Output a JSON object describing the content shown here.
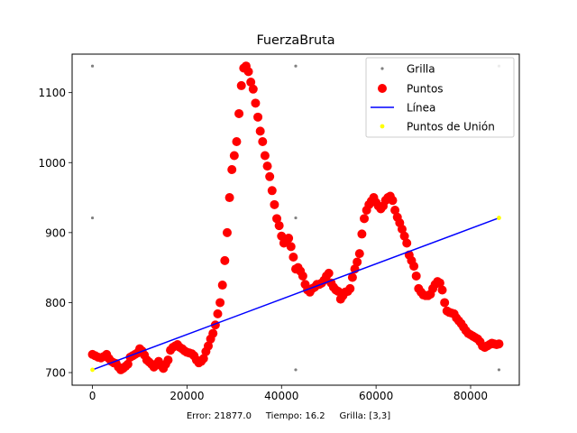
{
  "chart_data": {
    "type": "scatter",
    "title": "FuerzaBruta",
    "xlabel": "",
    "ylabel": "",
    "xlim": [
      -4300,
      90300
    ],
    "ylim": [
      682,
      1155
    ],
    "xticks": [
      0,
      20000,
      40000,
      60000,
      80000
    ],
    "yticks": [
      700,
      800,
      900,
      1000,
      1100
    ],
    "grid": false,
    "legend": {
      "placement": "top-right",
      "entries": [
        "Grilla",
        "Puntos",
        "Línea",
        "Puntos de Unión"
      ]
    },
    "colors": {
      "grilla": "#808080",
      "puntos": "#ff0000",
      "linea": "#0000ff",
      "union": "#ffff00"
    },
    "series": [
      {
        "name": "Grilla",
        "kind": "scatter",
        "points": [
          [
            0,
            704
          ],
          [
            0,
            921
          ],
          [
            0,
            1138
          ],
          [
            43000,
            704
          ],
          [
            43000,
            921
          ],
          [
            43000,
            1138
          ],
          [
            86000,
            704
          ],
          [
            86000,
            921
          ],
          [
            86000,
            1138
          ]
        ]
      },
      {
        "name": "Puntos",
        "kind": "scatter",
        "points": [
          [
            0,
            726
          ],
          [
            600,
            724
          ],
          [
            1200,
            722
          ],
          [
            1800,
            721
          ],
          [
            2400,
            723
          ],
          [
            3000,
            726
          ],
          [
            3500,
            720
          ],
          [
            4000,
            716
          ],
          [
            4500,
            714
          ],
          [
            5000,
            713
          ],
          [
            5500,
            708
          ],
          [
            6000,
            704
          ],
          [
            6500,
            706
          ],
          [
            7000,
            709
          ],
          [
            7500,
            712
          ],
          [
            8000,
            722
          ],
          [
            8500,
            724
          ],
          [
            9000,
            726
          ],
          [
            9500,
            728
          ],
          [
            10000,
            734
          ],
          [
            10500,
            731
          ],
          [
            11000,
            725
          ],
          [
            11500,
            718
          ],
          [
            12000,
            715
          ],
          [
            12500,
            712
          ],
          [
            13000,
            708
          ],
          [
            13500,
            712
          ],
          [
            14000,
            716
          ],
          [
            14500,
            710
          ],
          [
            15000,
            706
          ],
          [
            15500,
            712
          ],
          [
            16000,
            718
          ],
          [
            16500,
            732
          ],
          [
            17000,
            736
          ],
          [
            17500,
            738
          ],
          [
            18000,
            740
          ],
          [
            18500,
            736
          ],
          [
            19000,
            734
          ],
          [
            19500,
            731
          ],
          [
            20000,
            729
          ],
          [
            20500,
            728
          ],
          [
            21000,
            727
          ],
          [
            21500,
            724
          ],
          [
            22000,
            718
          ],
          [
            22500,
            714
          ],
          [
            23000,
            716
          ],
          [
            23500,
            720
          ],
          [
            24000,
            730
          ],
          [
            24500,
            738
          ],
          [
            25000,
            748
          ],
          [
            25500,
            756
          ],
          [
            26000,
            768
          ],
          [
            26500,
            784
          ],
          [
            27000,
            800
          ],
          [
            27500,
            825
          ],
          [
            28000,
            860
          ],
          [
            28500,
            900
          ],
          [
            29000,
            950
          ],
          [
            29500,
            990
          ],
          [
            30000,
            1010
          ],
          [
            30500,
            1030
          ],
          [
            31000,
            1070
          ],
          [
            31500,
            1110
          ],
          [
            32000,
            1135
          ],
          [
            32500,
            1138
          ],
          [
            33000,
            1130
          ],
          [
            33500,
            1115
          ],
          [
            34000,
            1105
          ],
          [
            34500,
            1085
          ],
          [
            35000,
            1065
          ],
          [
            35500,
            1045
          ],
          [
            36000,
            1030
          ],
          [
            36500,
            1010
          ],
          [
            37000,
            995
          ],
          [
            37500,
            980
          ],
          [
            38000,
            960
          ],
          [
            38500,
            940
          ],
          [
            39000,
            920
          ],
          [
            39500,
            910
          ],
          [
            40000,
            895
          ],
          [
            40500,
            885
          ],
          [
            41000,
            888
          ],
          [
            41500,
            892
          ],
          [
            42000,
            880
          ],
          [
            42500,
            865
          ],
          [
            43000,
            848
          ],
          [
            43500,
            850
          ],
          [
            44000,
            845
          ],
          [
            44500,
            838
          ],
          [
            45000,
            826
          ],
          [
            45500,
            818
          ],
          [
            46000,
            815
          ],
          [
            46500,
            820
          ],
          [
            47000,
            822
          ],
          [
            47500,
            826
          ],
          [
            48000,
            826
          ],
          [
            48500,
            828
          ],
          [
            49000,
            832
          ],
          [
            49500,
            838
          ],
          [
            50000,
            842
          ],
          [
            50500,
            828
          ],
          [
            51000,
            822
          ],
          [
            51500,
            818
          ],
          [
            52000,
            816
          ],
          [
            52500,
            805
          ],
          [
            53000,
            810
          ],
          [
            53500,
            815
          ],
          [
            54000,
            816
          ],
          [
            54500,
            820
          ],
          [
            55000,
            836
          ],
          [
            55500,
            848
          ],
          [
            56000,
            858
          ],
          [
            56500,
            870
          ],
          [
            57000,
            898
          ],
          [
            57500,
            920
          ],
          [
            58000,
            932
          ],
          [
            58500,
            940
          ],
          [
            59000,
            945
          ],
          [
            59500,
            950
          ],
          [
            60000,
            943
          ],
          [
            60500,
            938
          ],
          [
            61000,
            934
          ],
          [
            61500,
            938
          ],
          [
            62000,
            946
          ],
          [
            62500,
            950
          ],
          [
            63000,
            952
          ],
          [
            63500,
            946
          ],
          [
            64000,
            932
          ],
          [
            64500,
            922
          ],
          [
            65000,
            914
          ],
          [
            65500,
            905
          ],
          [
            66000,
            895
          ],
          [
            66500,
            885
          ],
          [
            67000,
            868
          ],
          [
            67500,
            860
          ],
          [
            68000,
            852
          ],
          [
            68500,
            838
          ],
          [
            69000,
            820
          ],
          [
            69500,
            815
          ],
          [
            70000,
            811
          ],
          [
            70500,
            810
          ],
          [
            71000,
            810
          ],
          [
            71500,
            812
          ],
          [
            72000,
            820
          ],
          [
            72500,
            826
          ],
          [
            73000,
            830
          ],
          [
            73500,
            828
          ],
          [
            74000,
            818
          ],
          [
            74500,
            800
          ],
          [
            75000,
            788
          ],
          [
            75500,
            786
          ],
          [
            76000,
            785
          ],
          [
            76500,
            784
          ],
          [
            77000,
            778
          ],
          [
            77500,
            774
          ],
          [
            78000,
            770
          ],
          [
            78500,
            765
          ],
          [
            79000,
            760
          ],
          [
            79500,
            756
          ],
          [
            80000,
            754
          ],
          [
            80500,
            752
          ],
          [
            81000,
            750
          ],
          [
            81500,
            748
          ],
          [
            82000,
            744
          ],
          [
            82500,
            738
          ],
          [
            83000,
            736
          ],
          [
            83500,
            738
          ],
          [
            84000,
            740
          ],
          [
            84500,
            742
          ],
          [
            85000,
            741
          ],
          [
            85500,
            740
          ],
          [
            86000,
            741
          ]
        ]
      },
      {
        "name": "Línea",
        "kind": "line",
        "points": [
          [
            0,
            704
          ],
          [
            86000,
            921
          ]
        ]
      },
      {
        "name": "Puntos de Unión",
        "kind": "scatter",
        "points": [
          [
            0,
            704
          ],
          [
            86000,
            921
          ]
        ]
      }
    ]
  },
  "footer": {
    "error_text": "Error: 21877.0",
    "tiempo_text": "Tiempo: 16.2",
    "grilla_text": "Grilla: [3,3]"
  }
}
